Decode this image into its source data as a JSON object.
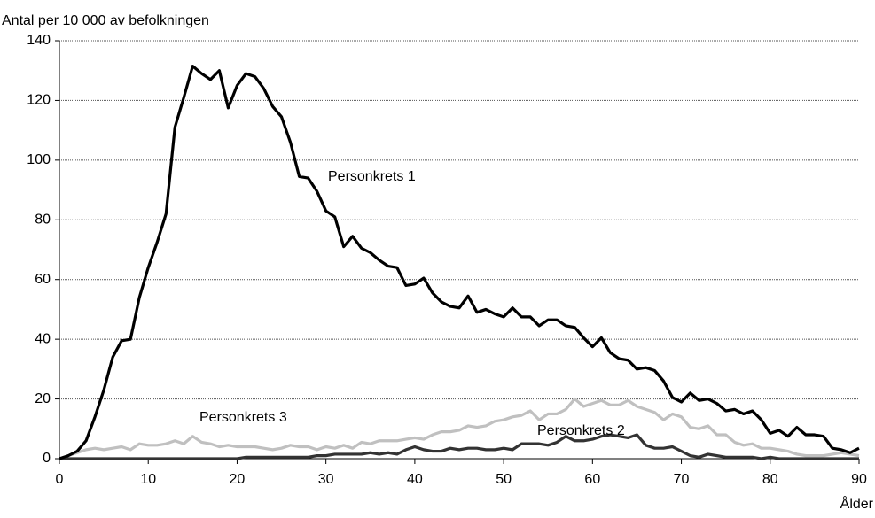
{
  "chart_data": {
    "type": "line",
    "y_label": "Antal per 10 000 av befolkningen",
    "x_label": "Ålder",
    "x": [
      0,
      1,
      2,
      3,
      4,
      5,
      6,
      7,
      8,
      9,
      10,
      11,
      12,
      13,
      14,
      15,
      16,
      17,
      18,
      19,
      20,
      21,
      22,
      23,
      24,
      25,
      26,
      27,
      28,
      29,
      30,
      31,
      32,
      33,
      34,
      35,
      36,
      37,
      38,
      39,
      40,
      41,
      42,
      43,
      44,
      45,
      46,
      47,
      48,
      49,
      50,
      51,
      52,
      53,
      54,
      55,
      56,
      57,
      58,
      59,
      60,
      61,
      62,
      63,
      64,
      65,
      66,
      67,
      68,
      69,
      70,
      71,
      72,
      73,
      74,
      75,
      76,
      77,
      78,
      79,
      80,
      81,
      82,
      83,
      84,
      85,
      86,
      87,
      88,
      89,
      90
    ],
    "series": [
      {
        "name": "Personkrets 1",
        "color": "#000000",
        "values": [
          0,
          1,
          2.5,
          6,
          14,
          23,
          34,
          39.5,
          40,
          54,
          64,
          72.5,
          82,
          111,
          121,
          131.5,
          129,
          127,
          130,
          117.5,
          125,
          129,
          128,
          124,
          118,
          114.5,
          106,
          94.5,
          94,
          89.5,
          83,
          81,
          71,
          74.5,
          70.5,
          69,
          66.5,
          64.5,
          64,
          58,
          58.5,
          60.5,
          55.5,
          52.5,
          51,
          50.5,
          54.5,
          49,
          50,
          48.5,
          47.5,
          50.5,
          47.5,
          47.5,
          44.5,
          46.5,
          46.5,
          44.5,
          44,
          40.5,
          37.5,
          40.5,
          35.5,
          33.5,
          33,
          30,
          30.5,
          29.5,
          26,
          20.5,
          19,
          22,
          19.5,
          20,
          18.5,
          16,
          16.5,
          15,
          16,
          13,
          8.5,
          9.5,
          7.5,
          10.5,
          8,
          8,
          7.5,
          3.5,
          3,
          2,
          3.5
        ]
      },
      {
        "name": "Personkrets 2",
        "color": "#333333",
        "values": [
          0,
          0,
          0,
          0,
          0,
          0,
          0,
          0,
          0,
          0,
          0,
          0,
          0,
          0,
          0,
          0,
          0,
          0,
          0,
          0,
          0,
          0.5,
          0.5,
          0.5,
          0.5,
          0.5,
          0.5,
          0.5,
          0.5,
          1,
          1,
          1.5,
          1.5,
          1.5,
          1.5,
          2,
          1.5,
          2,
          1.5,
          3,
          4,
          3,
          2.5,
          2.5,
          3.5,
          3,
          3.5,
          3.5,
          3,
          3,
          3.5,
          3,
          5,
          5,
          5,
          4.5,
          5.5,
          7.5,
          6,
          6,
          6.5,
          7.5,
          8,
          7.5,
          7,
          8,
          4.5,
          3.5,
          3.5,
          4,
          2.5,
          1,
          0.5,
          1.5,
          1,
          0.5,
          0.5,
          0.5,
          0.5,
          0,
          0.5,
          0,
          0,
          0,
          0,
          0,
          0,
          0,
          0,
          0,
          0
        ]
      },
      {
        "name": "Personkrets 3",
        "color": "#c0c0c0",
        "values": [
          0,
          1,
          2,
          3,
          3.5,
          3,
          3.5,
          4,
          3,
          5,
          4.5,
          4.5,
          5,
          6,
          5,
          7.5,
          5.5,
          5,
          4,
          4.5,
          4,
          4,
          4,
          3.5,
          3,
          3.5,
          4.5,
          4,
          4,
          3,
          4,
          3.5,
          4.5,
          3.5,
          5.5,
          5,
          6,
          6,
          6,
          6.5,
          7,
          6.5,
          8,
          9,
          9,
          9.5,
          11,
          10.5,
          11,
          12.5,
          13,
          14,
          14.5,
          16,
          13,
          15,
          15,
          16.5,
          20,
          17.5,
          18.5,
          19.5,
          18,
          18,
          19.5,
          17.5,
          16.5,
          15.5,
          13,
          15,
          14,
          10.5,
          10,
          11,
          8,
          8,
          5.5,
          4.5,
          5,
          3.5,
          3.5,
          3,
          2.5,
          1.5,
          1,
          1,
          1,
          1.5,
          2,
          1.5,
          1
        ]
      }
    ],
    "xlim": [
      0,
      90
    ],
    "xticks": [
      0,
      10,
      20,
      30,
      40,
      50,
      60,
      70,
      80,
      90
    ],
    "ylim": [
      0,
      140
    ],
    "yticks": [
      0,
      20,
      40,
      60,
      80,
      100,
      120,
      140
    ],
    "grid": true
  }
}
